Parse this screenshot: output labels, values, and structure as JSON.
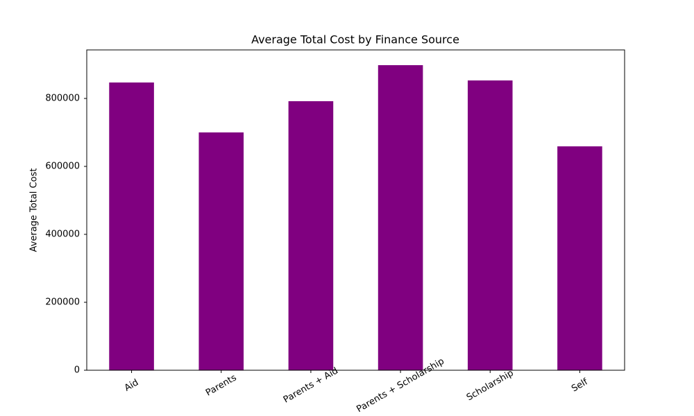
{
  "chart_data": {
    "type": "bar",
    "title": "Average Total Cost by Finance Source",
    "y_label": "Average Total Cost",
    "categories": [
      "Aid",
      "Parents",
      "Parents + Aid",
      "Parents + Scholarship",
      "Scholarship",
      "Self"
    ],
    "values": [
      847000,
      700000,
      792000,
      898000,
      853000,
      659000
    ],
    "color": "#800080",
    "ylim": [
      0,
      942857
    ],
    "yticks": [
      0,
      200000,
      400000,
      600000,
      800000
    ],
    "grid": false
  }
}
